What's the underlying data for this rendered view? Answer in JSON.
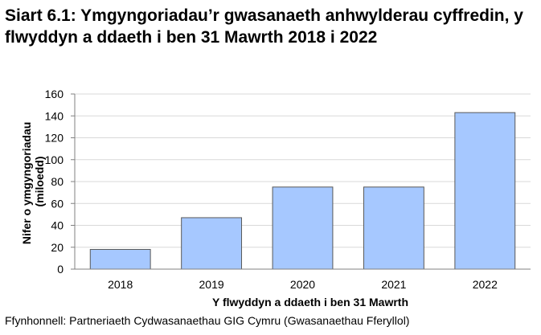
{
  "title": "Siart 6.1: Ymgyngoriadau’r gwasanaeth anhwylderau cyffredin, y flwyddyn a ddaeth i ben 31 Mawrth 2018 i 2022",
  "source": "Ffynhonnell: Partneriaeth Cydwasanaethau GIG Cymru (Gwasanaethau Fferyllol)",
  "chart_data": {
    "type": "bar",
    "categories": [
      "2018",
      "2019",
      "2020",
      "2021",
      "2022"
    ],
    "values": [
      18,
      47,
      75,
      75,
      143
    ],
    "xlabel": "Y flwyddyn a ddaeth i ben 31 Mawrth",
    "ylabel_lines": [
      "Nifer o ymgyngoriadau",
      "(miloedd)"
    ],
    "ylim": [
      0,
      160
    ],
    "yticks": [
      0,
      20,
      40,
      60,
      80,
      100,
      120,
      140,
      160
    ],
    "grid": true,
    "bar_color": "#a6c8ff",
    "bar_border": "#595959"
  }
}
